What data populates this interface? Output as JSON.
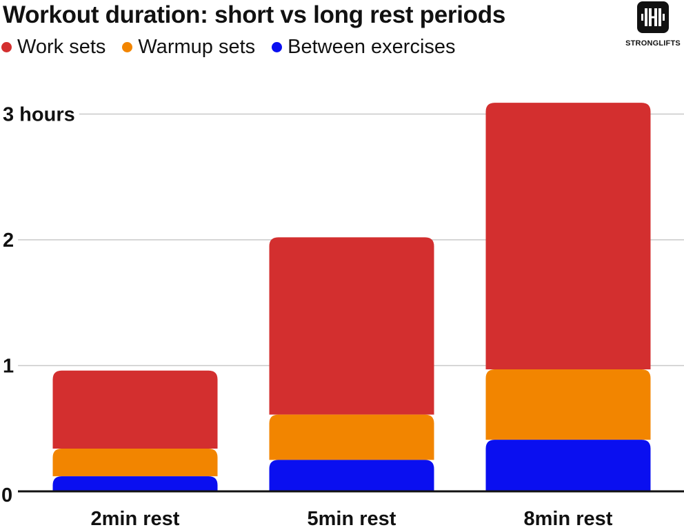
{
  "title": "Workout duration: short vs long rest periods",
  "logo": {
    "text": "STRONGLIFTS",
    "icon": "barbell-icon"
  },
  "legend": [
    {
      "label": "Work sets",
      "color": "#d32f2f"
    },
    {
      "label": "Warmup sets",
      "color": "#f28500"
    },
    {
      "label": "Between exercises",
      "color": "#0a0ff0"
    }
  ],
  "chart_data": {
    "type": "bar",
    "stacked": true,
    "categories": [
      "2min rest",
      "5min rest",
      "8min rest"
    ],
    "series": [
      {
        "name": "Between exercises",
        "color": "#0a0ff0",
        "values": [
          0.12,
          0.25,
          0.41
        ]
      },
      {
        "name": "Warmup sets",
        "color": "#f28500",
        "values": [
          0.22,
          0.36,
          0.56
        ]
      },
      {
        "name": "Work sets",
        "color": "#d32f2f",
        "values": [
          0.62,
          1.41,
          2.12
        ]
      }
    ],
    "y_ticks": [
      {
        "value": 0,
        "label": "0"
      },
      {
        "value": 1,
        "label": "1"
      },
      {
        "value": 2,
        "label": "2"
      },
      {
        "value": 3,
        "label": "3 hours"
      }
    ],
    "ylim": [
      0,
      3.3
    ],
    "grid": true,
    "legend_position": "top-left"
  }
}
